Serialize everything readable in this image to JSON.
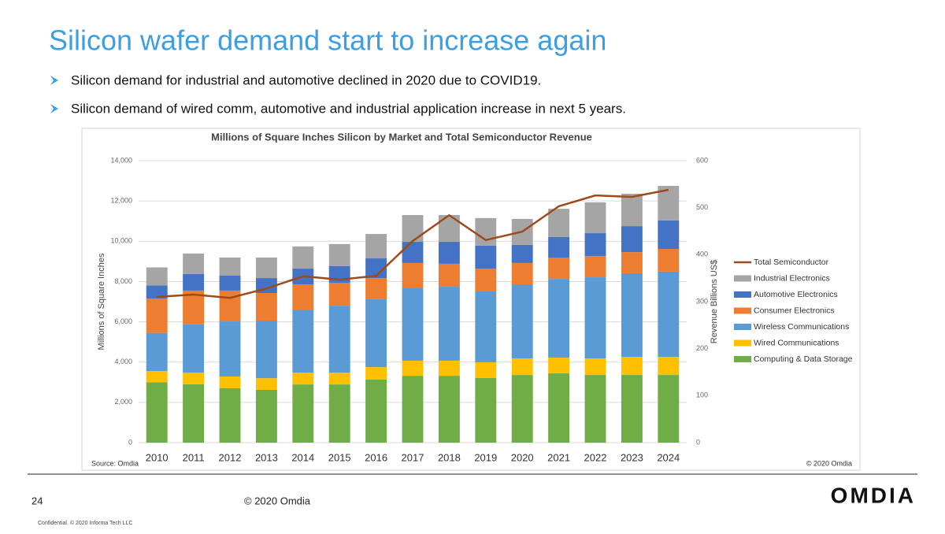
{
  "slide_title": "Silicon wafer demand start to increase again",
  "bullets": [
    "Silicon demand for industrial and automotive declined in 2020 due to COVID19.",
    "Silicon demand of wired comm, automotive and industrial application increase in next 5 years."
  ],
  "chart_data": {
    "type": "bar",
    "stacked": true,
    "title": "Millions of Square Inches Silicon by Market and Total Semiconductor Revenue",
    "y_label": "Millions of Square Inches",
    "y2_label": "Revenue Billions US$",
    "source": "Source: Omdia",
    "copyright": "© 2020 Omdia",
    "categories": [
      "2010",
      "2011",
      "2012",
      "2013",
      "2014",
      "2015",
      "2016",
      "2017",
      "2018",
      "2019",
      "2020",
      "2021",
      "2022",
      "2023",
      "2024"
    ],
    "series": [
      {
        "name": "Computing & Data Storage",
        "color": "#70ad47",
        "values": [
          3000,
          2900,
          2700,
          2620,
          2890,
          2890,
          3130,
          3320,
          3320,
          3210,
          3360,
          3440,
          3360,
          3360,
          3360
        ]
      },
      {
        "name": "Wired Communications",
        "color": "#ffc000",
        "values": [
          550,
          580,
          585,
          580,
          590,
          590,
          620,
          750,
          750,
          780,
          820,
          780,
          820,
          900,
          900
        ]
      },
      {
        "name": "Wireless Communications",
        "color": "#5b9bd5",
        "values": [
          1900,
          2390,
          2735,
          2860,
          3090,
          3320,
          3370,
          3630,
          3670,
          3520,
          3680,
          3910,
          4030,
          4150,
          4230
        ]
      },
      {
        "name": "Consumer Electronics",
        "color": "#ed7d31",
        "values": [
          1700,
          1680,
          1530,
          1370,
          1290,
          1140,
          1050,
          1220,
          1140,
          1130,
          1060,
          1060,
          1060,
          1050,
          1130
        ]
      },
      {
        "name": "Automotive Electronics",
        "color": "#4472c4",
        "values": [
          650,
          820,
          740,
          740,
          780,
          820,
          980,
          1050,
          1090,
          1140,
          900,
          1020,
          1130,
          1290,
          1410
        ]
      },
      {
        "name": "Industrial Electronics",
        "color": "#a5a5a5",
        "values": [
          900,
          1020,
          900,
          1020,
          1100,
          1100,
          1210,
          1330,
          1330,
          1370,
          1290,
          1400,
          1530,
          1610,
          1720
        ]
      },
      {
        "name": "Total Semiconductor",
        "color": "#9e4a1b",
        "type": "line",
        "axis": "y2",
        "values": [
          310,
          315,
          308,
          328,
          354,
          347,
          355,
          429,
          484,
          431,
          449,
          503,
          526,
          523,
          538
        ]
      }
    ],
    "ylim": [
      0,
      14000
    ],
    "yticks": [
      0,
      {
        "value": 2000,
        "label": "2,000"
      },
      {
        "value": 4000,
        "label": "4,000"
      },
      {
        "value": 6000,
        "label": "6,000"
      },
      {
        "value": 8000,
        "label": "8,000"
      },
      {
        "value": 10000,
        "label": "10,000"
      },
      {
        "value": 12000,
        "label": "12,000"
      },
      {
        "value": 14000,
        "label": "14,000"
      }
    ],
    "y2lim": [
      0,
      600
    ],
    "y2ticks": [
      0,
      100,
      200,
      300,
      400,
      500,
      600
    ],
    "grid": true,
    "legend": "right"
  },
  "footer": {
    "page": "24",
    "copyright": "© 2020 Omdia",
    "logo": "OMDIA",
    "confidential": "Confidential. © 2020 Informa Tech LLC"
  }
}
